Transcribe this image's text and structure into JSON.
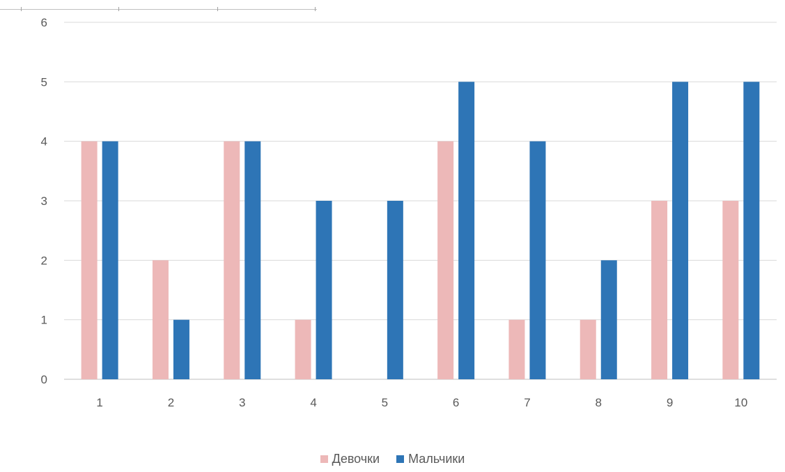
{
  "chart_data": {
    "type": "bar",
    "categories": [
      "1",
      "2",
      "3",
      "4",
      "5",
      "6",
      "7",
      "8",
      "9",
      "10"
    ],
    "series": [
      {
        "name": "Девочки",
        "color": "#EDB8B8",
        "values": [
          4,
          2,
          4,
          1,
          0,
          4,
          1,
          1,
          3,
          3
        ]
      },
      {
        "name": "Мальчики",
        "color": "#2E75B6",
        "values": [
          4,
          1,
          4,
          3,
          3,
          5,
          4,
          2,
          5,
          5
        ]
      }
    ],
    "yticks": [
      "0",
      "1",
      "2",
      "3",
      "4",
      "5",
      "6"
    ],
    "ylim": [
      0,
      6
    ],
    "grid": true,
    "legend_position": "bottom"
  }
}
